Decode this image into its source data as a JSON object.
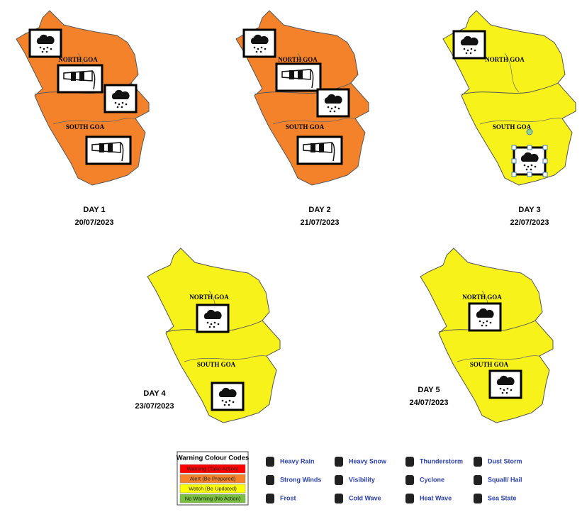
{
  "maps": [
    {
      "day": "DAY 1",
      "date": "20/07/2023",
      "north": "NORTH GOA",
      "south": "SOUTH GOA",
      "color": "#f4822a"
    },
    {
      "day": "DAY 2",
      "date": "21/07/2023",
      "north": "NORTH GOA",
      "south": "SOUTH GOA",
      "color": "#f4822a"
    },
    {
      "day": "DAY 3",
      "date": "22/07/2023",
      "north": "NORTH GOA",
      "south": "SOUTH GOA",
      "color": "#f7f21a"
    },
    {
      "day": "DAY 4",
      "date": "23/07/2023",
      "north": "NORTH GOA",
      "south": "SOUTH GOA",
      "color": "#f7f21a"
    },
    {
      "day": "DAY 5",
      "date": "24/07/2023",
      "north": "NORTH GOA",
      "south": "SOUTH GOA",
      "color": "#f7f21a"
    }
  ],
  "legend": {
    "title": "Warning Colour Codes",
    "codes": [
      {
        "label": "Warning (Take Action)",
        "color": "#ff0000"
      },
      {
        "label": "Alert (Be Prepared)",
        "color": "#f4822a"
      },
      {
        "label": "Watch (Be Updated)",
        "color": "#ffff00"
      },
      {
        "label": "No Warning (No Action)",
        "color": "#7ac142"
      }
    ],
    "hazards": [
      "Heavy Rain",
      "Heavy Snow",
      "Thunderstorm",
      "Dust Storm",
      "Strong Winds",
      "Visibility",
      "Cyclone",
      "Squall/ Hail",
      "Frost",
      "Cold Wave",
      "Heat Wave",
      "Sea State"
    ]
  }
}
